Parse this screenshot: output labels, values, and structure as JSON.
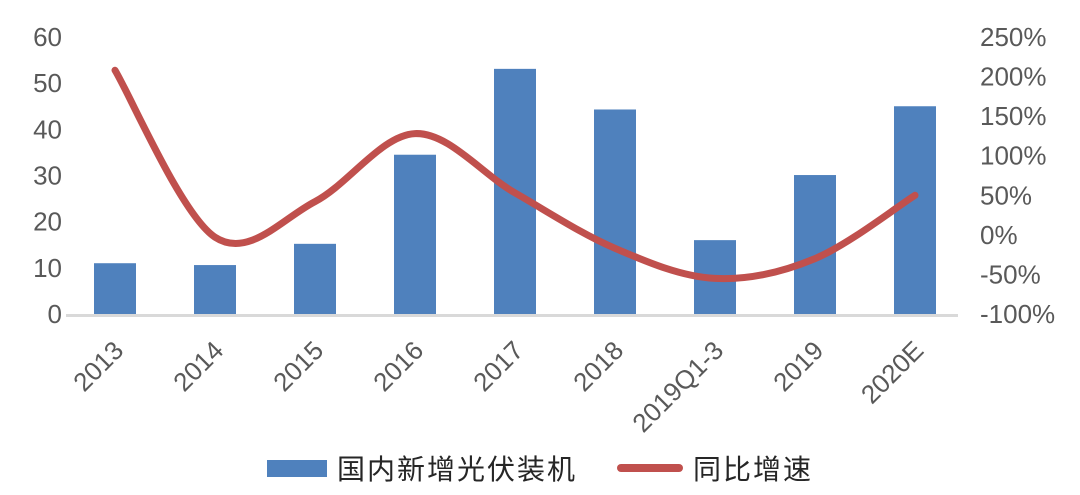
{
  "chart_data": {
    "type": "combo",
    "title": "",
    "categories": [
      "2013",
      "2014",
      "2015",
      "2016",
      "2017",
      "2018",
      "2019Q1-3",
      "2019",
      "2020E"
    ],
    "series": [
      {
        "name": "国内新增光伏装机",
        "type": "bar",
        "axis": "left",
        "color": "#4F81BD",
        "values": [
          11,
          10.6,
          15.2,
          34.5,
          53.1,
          44.3,
          16,
          30.1,
          45
        ]
      },
      {
        "name": "同比增速",
        "type": "line",
        "axis": "right",
        "color": "#C0504D",
        "unit": "%",
        "values": [
          208,
          -3,
          42,
          128,
          53,
          -17,
          -55,
          -30,
          50
        ]
      }
    ],
    "left_axis": {
      "min": 0,
      "max": 60,
      "ticks": [
        0,
        10,
        20,
        30,
        40,
        50,
        60
      ]
    },
    "right_axis": {
      "min": -100,
      "max": 250,
      "tick_values": [
        250,
        200,
        150,
        100,
        50,
        0,
        -50,
        -100
      ],
      "tick_labels": [
        "250%",
        "200%",
        "150%",
        "100%",
        "50%",
        "0%",
        "-50%",
        "-100%"
      ]
    },
    "grid": "off",
    "legend_position": "bottom",
    "colors": {
      "bar": "#4F81BD",
      "line": "#C0504D",
      "axis_text": "#595959",
      "baseline": "#D9D9D9",
      "legend_text": "#262626"
    }
  }
}
